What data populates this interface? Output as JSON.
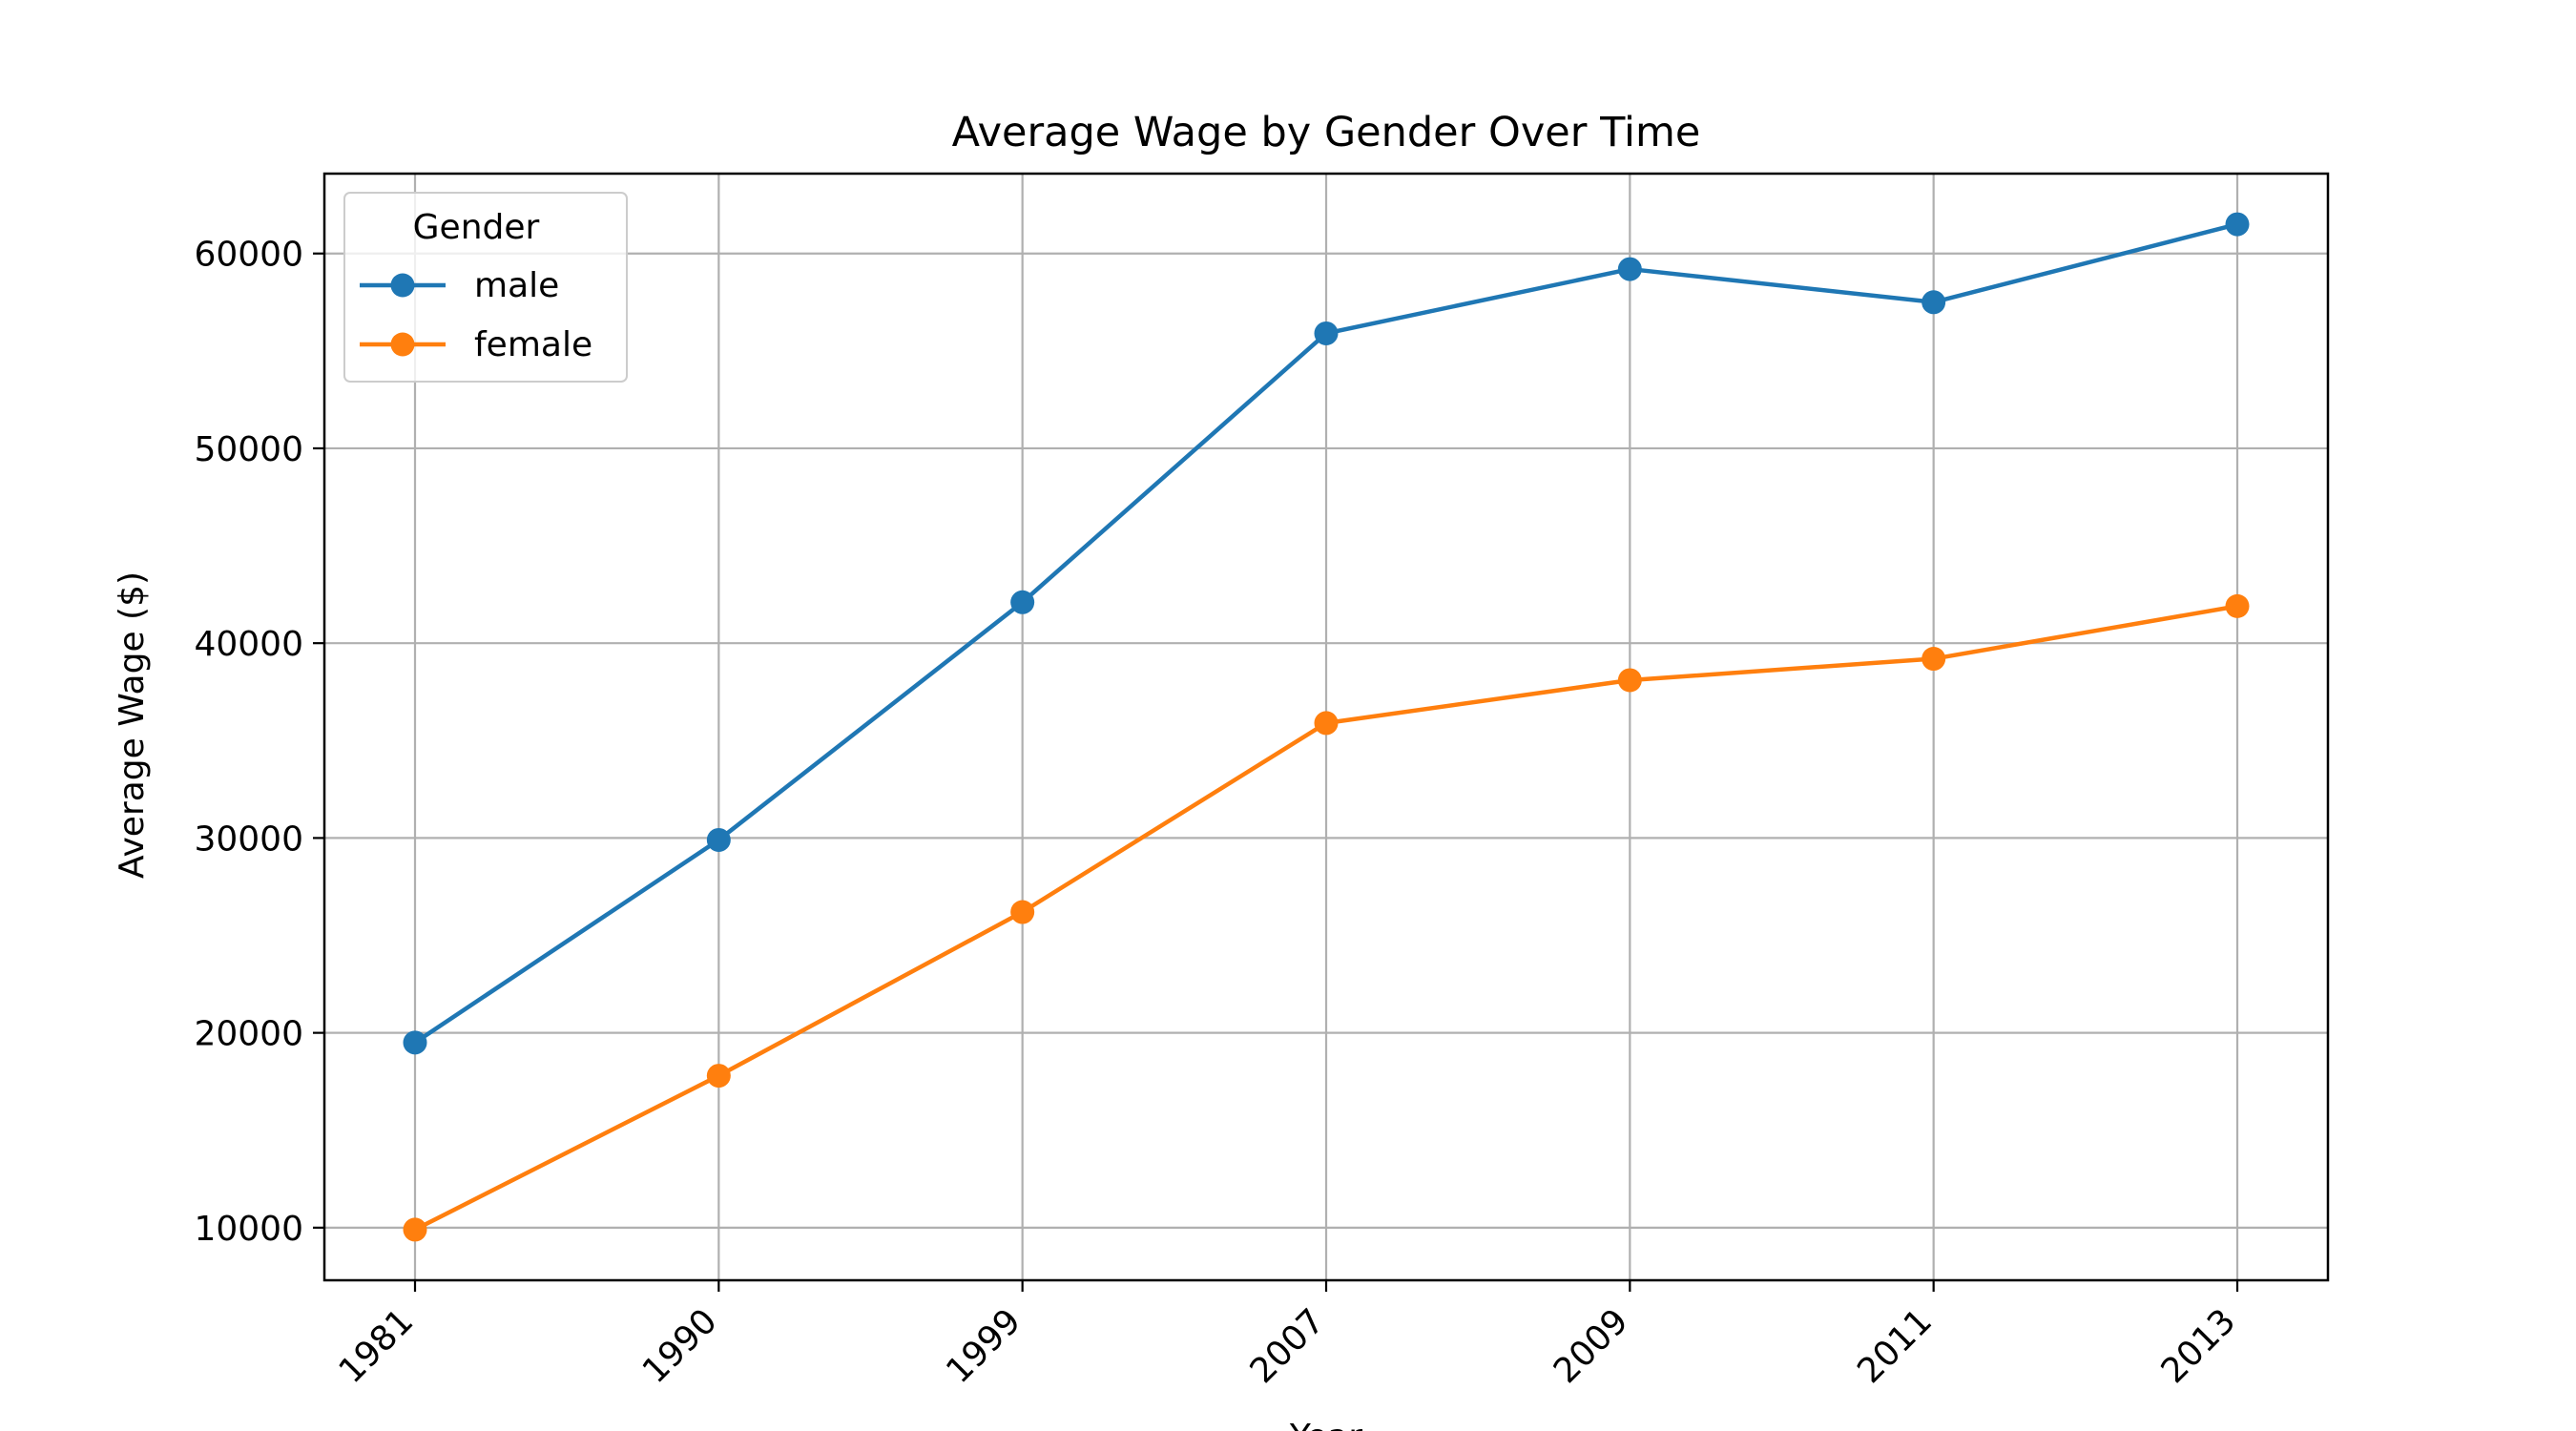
{
  "chart_data": {
    "type": "line",
    "title": "Average Wage by Gender Over Time",
    "xlabel": "Year",
    "ylabel": "Average Wage ($)",
    "categories": [
      "1981",
      "1990",
      "1999",
      "2007",
      "2009",
      "2011",
      "2013"
    ],
    "yticks": [
      10000,
      20000,
      30000,
      40000,
      50000,
      60000
    ],
    "ylim": [
      7300,
      64100
    ],
    "grid": true,
    "legend": {
      "title": "Gender",
      "placement": "upper-left"
    },
    "series": [
      {
        "name": "male",
        "color": "#1f77b4",
        "values": [
          19500,
          29900,
          42100,
          55900,
          59200,
          57500,
          61500
        ]
      },
      {
        "name": "female",
        "color": "#ff7f0e",
        "values": [
          9900,
          17800,
          26200,
          35900,
          38100,
          39200,
          41900
        ]
      }
    ]
  }
}
